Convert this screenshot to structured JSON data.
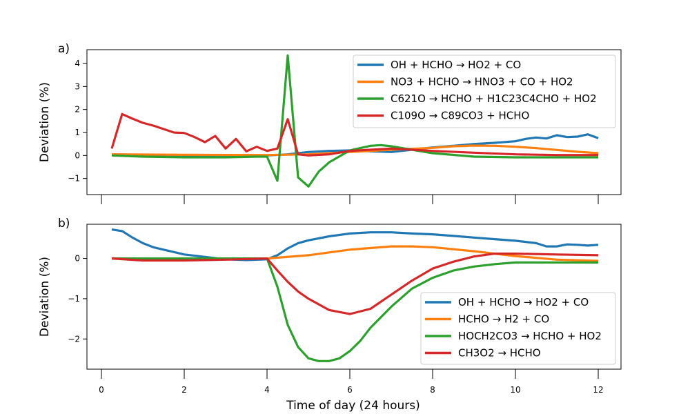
{
  "figure": {
    "xlabel": "Time of day (24 hours)"
  },
  "chart_data": [
    {
      "type": "line",
      "panel_label": "a)",
      "ylabel": "Deviation (%)",
      "xlim": [
        -0.35,
        12.55
      ],
      "ylim": [
        -1.7,
        4.6
      ],
      "xticks": [
        0,
        2,
        4,
        6,
        8,
        10,
        12
      ],
      "yticks": [
        -1,
        0,
        1,
        2,
        3,
        4
      ],
      "show_xtick_labels": false,
      "legend_position": "top-right",
      "series": [
        {
          "name": "OH + HCHO → HO2 + CO",
          "color": "#1f77b4",
          "x": [
            0.25,
            1,
            2,
            3,
            4,
            4.5,
            5,
            5.5,
            6,
            6.5,
            7,
            7.5,
            8,
            8.5,
            9,
            9.5,
            10,
            10.25,
            10.5,
            10.75,
            11,
            11.25,
            11.5,
            11.75,
            12
          ],
          "y": [
            0.05,
            0.03,
            0.0,
            -0.02,
            0.0,
            0.05,
            0.15,
            0.2,
            0.22,
            0.18,
            0.15,
            0.25,
            0.35,
            0.42,
            0.5,
            0.55,
            0.62,
            0.72,
            0.78,
            0.74,
            0.88,
            0.8,
            0.82,
            0.92,
            0.75
          ]
        },
        {
          "name": "NO3 + HCHO → HNO3 + CO + HO2",
          "color": "#ff7f0e",
          "x": [
            0.25,
            2,
            4,
            5,
            6,
            7,
            8,
            8.5,
            9,
            9.5,
            10,
            10.5,
            11,
            11.5,
            12
          ],
          "y": [
            0.05,
            0.03,
            0.02,
            0.05,
            0.15,
            0.25,
            0.33,
            0.4,
            0.43,
            0.42,
            0.38,
            0.32,
            0.24,
            0.16,
            0.1
          ]
        },
        {
          "name": "C621O → HCHO + H1C23C4CHO + HO2",
          "color": "#2ca02c",
          "x": [
            0.25,
            1,
            2,
            3,
            3.75,
            4,
            4.25,
            4.5,
            4.75,
            5,
            5.25,
            5.5,
            6,
            6.5,
            6.75,
            7,
            7.5,
            8,
            9,
            10,
            11,
            12
          ],
          "y": [
            0.0,
            -0.05,
            -0.08,
            -0.08,
            -0.05,
            -0.05,
            -1.1,
            4.35,
            -0.95,
            -1.35,
            -0.7,
            -0.3,
            0.22,
            0.42,
            0.45,
            0.4,
            0.25,
            0.1,
            -0.05,
            -0.08,
            -0.08,
            -0.08
          ]
        },
        {
          "name": "C109O → C89CO3 + HCHO",
          "color": "#d62728",
          "x": [
            0.25,
            0.5,
            0.75,
            1,
            1.25,
            1.5,
            1.75,
            2,
            2.25,
            2.5,
            2.75,
            3,
            3.25,
            3.5,
            3.75,
            4,
            4.25,
            4.5,
            4.75,
            5,
            5.5,
            6,
            7,
            8,
            9,
            10,
            11,
            12
          ],
          "y": [
            0.3,
            1.8,
            1.6,
            1.42,
            1.3,
            1.15,
            1.0,
            0.98,
            0.8,
            0.58,
            0.85,
            0.3,
            0.72,
            0.18,
            0.38,
            0.2,
            0.3,
            1.58,
            0.05,
            0.0,
            0.05,
            0.2,
            0.3,
            0.2,
            0.12,
            0.05,
            0.02,
            0.02
          ]
        }
      ]
    },
    {
      "type": "line",
      "panel_label": "b)",
      "ylabel": "Deviation (%)",
      "xlim": [
        -0.35,
        12.55
      ],
      "ylim": [
        -2.75,
        0.85
      ],
      "xticks": [
        0,
        2,
        4,
        6,
        8,
        10,
        12
      ],
      "yticks": [
        -2,
        -1,
        0
      ],
      "show_xtick_labels": true,
      "legend_position": "lower-right",
      "series": [
        {
          "name": "OH + HCHO → HO2 + CO",
          "color": "#1f77b4",
          "x": [
            0.25,
            0.5,
            0.75,
            1,
            1.25,
            1.5,
            2,
            2.5,
            3,
            3.5,
            4,
            4.25,
            4.5,
            4.75,
            5,
            5.5,
            6,
            6.5,
            7,
            7.5,
            8,
            8.5,
            9,
            9.5,
            10,
            10.5,
            10.75,
            11,
            11.25,
            11.5,
            11.75,
            12
          ],
          "y": [
            0.72,
            0.68,
            0.52,
            0.38,
            0.28,
            0.22,
            0.1,
            0.04,
            -0.02,
            -0.04,
            -0.02,
            0.08,
            0.25,
            0.38,
            0.45,
            0.55,
            0.62,
            0.65,
            0.65,
            0.62,
            0.6,
            0.56,
            0.52,
            0.48,
            0.44,
            0.38,
            0.3,
            0.3,
            0.35,
            0.34,
            0.32,
            0.34
          ]
        },
        {
          "name": "HCHO → H2 + CO",
          "color": "#ff7f0e",
          "x": [
            0.25,
            2,
            4,
            5,
            6,
            7,
            7.5,
            8,
            9,
            10,
            11,
            12
          ],
          "y": [
            0.0,
            0.0,
            0.0,
            0.08,
            0.22,
            0.3,
            0.3,
            0.28,
            0.18,
            0.06,
            -0.03,
            -0.06
          ]
        },
        {
          "name": "HOCH2CO3 → HCHO + HO2",
          "color": "#2ca02c",
          "x": [
            0.25,
            1,
            2,
            3,
            4,
            4.25,
            4.5,
            4.75,
            5,
            5.25,
            5.5,
            5.75,
            6,
            6.25,
            6.5,
            7,
            7.5,
            8,
            8.5,
            9,
            9.5,
            10,
            11,
            12
          ],
          "y": [
            0.0,
            0.0,
            0.0,
            0.0,
            0.0,
            -0.7,
            -1.65,
            -2.2,
            -2.48,
            -2.55,
            -2.55,
            -2.48,
            -2.3,
            -2.05,
            -1.72,
            -1.2,
            -0.75,
            -0.48,
            -0.3,
            -0.2,
            -0.14,
            -0.1,
            -0.1,
            -0.1
          ]
        },
        {
          "name": "CH3O2 → HCHO",
          "color": "#d62728",
          "x": [
            0.25,
            1,
            2,
            3,
            4,
            4.25,
            4.5,
            4.75,
            5,
            5.5,
            6,
            6.5,
            7,
            7.5,
            8,
            8.5,
            9,
            9.5,
            10,
            11,
            12
          ],
          "y": [
            0.0,
            -0.05,
            -0.05,
            -0.03,
            0.0,
            -0.3,
            -0.58,
            -0.82,
            -1.0,
            -1.28,
            -1.38,
            -1.25,
            -0.9,
            -0.55,
            -0.25,
            -0.08,
            0.05,
            0.12,
            0.12,
            0.1,
            0.08
          ]
        }
      ]
    }
  ]
}
